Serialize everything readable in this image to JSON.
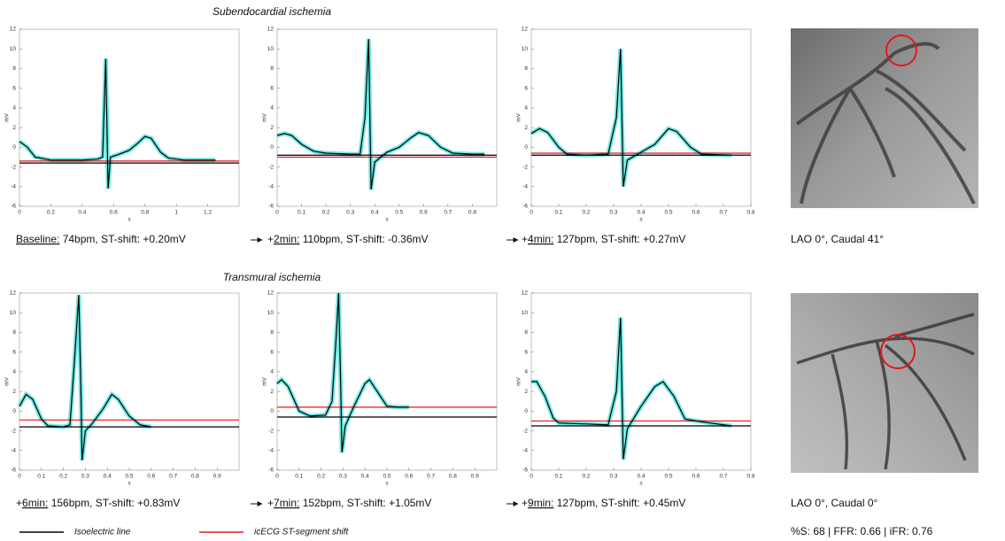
{
  "sections": [
    {
      "title": "Subendocardial ischemia"
    },
    {
      "title": "Transmural ischemia"
    }
  ],
  "legend": {
    "items": [
      {
        "label": "Isoelectric line",
        "color": "#000000"
      },
      {
        "label": "icECG ST-segment shift",
        "color": "#e8141b"
      }
    ]
  },
  "angiograms": [
    {
      "view": "LAO 0°, Caudal 41°"
    },
    {
      "view": "LAO 0°, Caudal 0°",
      "measurements": "%S: 68 | FFR: 0.66 | iFR: 0.76"
    }
  ],
  "chart_data": [
    {
      "type": "line",
      "xlabel": "s",
      "ylabel": "mV",
      "color": "#000000",
      "band_color": "#40e0d8",
      "xlim": [
        0,
        1.4
      ],
      "ylim": [
        -6,
        12
      ],
      "xticks": [
        0,
        0.2,
        0.4,
        0.6,
        0.8,
        1,
        1.2
      ],
      "yticks": [
        -6,
        -4,
        -2,
        0,
        2,
        4,
        6,
        8,
        10,
        12
      ],
      "x": [
        0,
        0.05,
        0.1,
        0.2,
        0.3,
        0.4,
        0.5,
        0.53,
        0.55,
        0.565,
        0.58,
        0.62,
        0.7,
        0.76,
        0.8,
        0.84,
        0.9,
        0.95,
        1.05,
        1.15,
        1.25
      ],
      "values": [
        0.6,
        0,
        -1,
        -1.3,
        -1.3,
        -1.3,
        -1.2,
        -1,
        9,
        -4.2,
        -1,
        -0.8,
        -0.3,
        0.5,
        1.1,
        0.9,
        -0.5,
        -1.1,
        -1.3,
        -1.3,
        -1.3
      ],
      "isoelectric": -1.6,
      "st_level": -1.4,
      "caption_time": "Baseline:",
      "caption_text": " 74bpm, ST-shift: +0.20mV"
    },
    {
      "type": "line",
      "xlabel": "s",
      "ylabel": "mV",
      "color": "#000000",
      "band_color": "#40e0d8",
      "xlim": [
        0,
        0.9
      ],
      "ylim": [
        -6,
        12
      ],
      "xticks": [
        0,
        0.1,
        0.2,
        0.3,
        0.4,
        0.5,
        0.6,
        0.7,
        0.8
      ],
      "yticks": [
        -6,
        -4,
        -2,
        0,
        2,
        4,
        6,
        8,
        10,
        12
      ],
      "x": [
        0,
        0.03,
        0.06,
        0.1,
        0.15,
        0.2,
        0.3,
        0.34,
        0.36,
        0.375,
        0.385,
        0.4,
        0.45,
        0.5,
        0.55,
        0.58,
        0.62,
        0.67,
        0.72,
        0.8,
        0.85
      ],
      "values": [
        1.2,
        1.4,
        1.2,
        0.3,
        -0.4,
        -0.6,
        -0.7,
        -0.7,
        3,
        11,
        -4.3,
        -1.5,
        -0.5,
        0,
        1,
        1.5,
        1.2,
        0,
        -0.6,
        -0.7,
        -0.7
      ],
      "isoelectric": -0.8,
      "st_level": -1.0,
      "caption_prefix": "+",
      "caption_time": "2min:",
      "caption_text": " 110bpm, ST-shift: -0.36mV"
    },
    {
      "type": "line",
      "xlabel": "s",
      "ylabel": "mV",
      "color": "#000000",
      "band_color": "#40e0d8",
      "xlim": [
        0,
        0.8
      ],
      "ylim": [
        -6,
        12
      ],
      "xticks": [
        0,
        0.1,
        0.2,
        0.3,
        0.4,
        0.5,
        0.6,
        0.7,
        0.8
      ],
      "yticks": [
        -6,
        -4,
        -2,
        0,
        2,
        4,
        6,
        8,
        10,
        12
      ],
      "x": [
        0,
        0.03,
        0.06,
        0.1,
        0.13,
        0.2,
        0.28,
        0.31,
        0.325,
        0.335,
        0.35,
        0.4,
        0.45,
        0.5,
        0.53,
        0.58,
        0.62,
        0.73
      ],
      "values": [
        1.4,
        1.9,
        1.5,
        0,
        -0.7,
        -0.8,
        -0.7,
        3,
        10,
        -4,
        -1.3,
        -0.5,
        0.3,
        1.9,
        1.6,
        0,
        -0.7,
        -0.8
      ],
      "isoelectric": -0.8,
      "st_level": -0.6,
      "caption_prefix": "+",
      "caption_time": "4min:",
      "caption_text": " 127bpm, ST-shift: +0.27mV"
    },
    {
      "type": "line",
      "xlabel": "s",
      "ylabel": "mV",
      "color": "#000000",
      "band_color": "#40e0d8",
      "xlim": [
        0,
        1
      ],
      "ylim": [
        -6,
        12
      ],
      "xticks": [
        0,
        0.1,
        0.2,
        0.3,
        0.4,
        0.5,
        0.6,
        0.7,
        0.8,
        0.9
      ],
      "yticks": [
        -6,
        -4,
        -2,
        0,
        2,
        4,
        6,
        8,
        10,
        12
      ],
      "x": [
        0,
        0.03,
        0.06,
        0.1,
        0.13,
        0.2,
        0.23,
        0.25,
        0.27,
        0.28,
        0.285,
        0.3,
        0.33,
        0.38,
        0.42,
        0.45,
        0.5,
        0.55,
        0.6
      ],
      "values": [
        0.5,
        1.7,
        1.2,
        -0.8,
        -1.5,
        -1.6,
        -1.4,
        5,
        11.8,
        2,
        -5,
        -2,
        -1.3,
        0.2,
        1.7,
        1.2,
        -0.5,
        -1.4,
        -1.6
      ],
      "isoelectric": -1.6,
      "st_level": -0.9,
      "caption_prefix": "+",
      "caption_time": "6min:",
      "caption_text": " 156bpm, ST-shift: +0.83mV"
    },
    {
      "type": "line",
      "xlabel": "s",
      "ylabel": "mV",
      "color": "#000000",
      "band_color": "#40e0d8",
      "xlim": [
        0,
        1
      ],
      "ylim": [
        -6,
        12
      ],
      "xticks": [
        0,
        0.1,
        0.2,
        0.3,
        0.4,
        0.5,
        0.6,
        0.7,
        0.8,
        0.9
      ],
      "yticks": [
        -6,
        -4,
        -2,
        0,
        2,
        4,
        6,
        8,
        10,
        12
      ],
      "x": [
        0,
        0.02,
        0.05,
        0.1,
        0.15,
        0.22,
        0.25,
        0.27,
        0.28,
        0.29,
        0.295,
        0.31,
        0.35,
        0.4,
        0.42,
        0.45,
        0.5,
        0.55,
        0.6
      ],
      "values": [
        2.8,
        3.2,
        2.5,
        0,
        -0.5,
        -0.4,
        1,
        8,
        12,
        2,
        -4.2,
        -1.5,
        0.5,
        2.8,
        3.2,
        2.2,
        0.5,
        0.4,
        0.4
      ],
      "isoelectric": -0.6,
      "st_level": 0.4,
      "caption_prefix": "+",
      "caption_time": "7min:",
      "caption_text": " 152bpm, ST-shift: +1.05mV"
    },
    {
      "type": "line",
      "xlabel": "s",
      "ylabel": "mV",
      "color": "#000000",
      "band_color": "#40e0d8",
      "xlim": [
        0,
        0.8
      ],
      "ylim": [
        -6,
        12
      ],
      "xticks": [
        0,
        0.1,
        0.2,
        0.3,
        0.4,
        0.5,
        0.6,
        0.7,
        0.8
      ],
      "yticks": [
        -6,
        -4,
        -2,
        0,
        2,
        4,
        6,
        8,
        10,
        12
      ],
      "x": [
        0,
        0.02,
        0.05,
        0.08,
        0.1,
        0.2,
        0.28,
        0.31,
        0.325,
        0.335,
        0.35,
        0.4,
        0.45,
        0.48,
        0.52,
        0.56,
        0.6,
        0.65,
        0.73
      ],
      "values": [
        3,
        3,
        1.5,
        -0.7,
        -1.2,
        -1.3,
        -1.4,
        2,
        9.5,
        -4.9,
        -1.8,
        0.5,
        2.5,
        3,
        1.5,
        -0.8,
        -1,
        -1.2,
        -1.5
      ],
      "isoelectric": -1.5,
      "st_level": -1.0,
      "caption_prefix": "+",
      "caption_time": "9min:",
      "caption_text": " 127bpm, ST-shift: +0.45mV"
    }
  ]
}
